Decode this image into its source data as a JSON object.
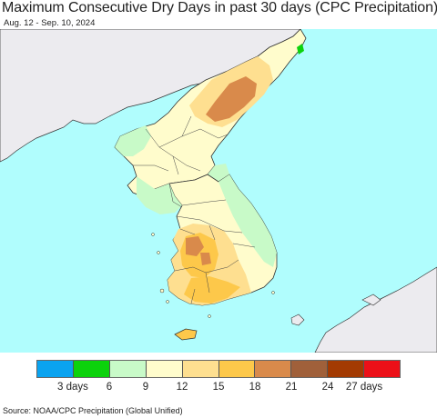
{
  "header": {
    "title": "Maximum Consecutive Dry Days in past 30 days (CPC Precipitation)",
    "date_range": "Aug. 12 - Sep. 10, 2024"
  },
  "legend": {
    "colors": [
      "#0aa3f0",
      "#0cd20c",
      "#c8fac8",
      "#fffccc",
      "#fedf90",
      "#fdc84a",
      "#d98a4b",
      "#a0603a",
      "#a33a02",
      "#ec1018"
    ],
    "labels": [
      "3 days",
      "6",
      "9",
      "12",
      "15",
      "18",
      "21",
      "24",
      "27 days"
    ]
  },
  "map": {
    "ocean_color": "#b0fdfd",
    "outside_land_color": "#ecebef",
    "border_color": "#222222"
  },
  "footer": {
    "source": "Source: NOAA/CPC Precipitation (Global Unified)"
  }
}
